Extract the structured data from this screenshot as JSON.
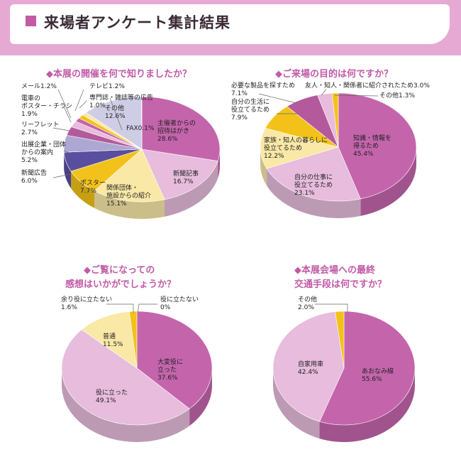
{
  "header": {
    "title": "来場者アンケート集計結果"
  },
  "colors": {
    "magenta": "#c465ac",
    "pink": "#e7bcdc",
    "gold": "#f3c21a",
    "lightyellow": "#f9e8a6",
    "navy": "#5a4e9e",
    "lavender": "#aca8d3",
    "palelavender": "#cfcde6",
    "plum": "#b45a9c",
    "banner": "#e6a9d3",
    "accent": "#c25aa6"
  },
  "chart_data": [
    {
      "type": "pie",
      "title": "◆本展の開催を何で知りましたか？",
      "slices": [
        {
          "label": "主催者からの招待はがき",
          "value": 28.6,
          "text": [
            "主催者からの",
            "招待はがき",
            "28.6%"
          ],
          "color": "magenta",
          "placement": "inside"
        },
        {
          "label": "新聞記事",
          "value": 16.7,
          "text": [
            "新聞記事",
            "16.7%"
          ],
          "color": "pink",
          "placement": "inside"
        },
        {
          "label": "関係団体・施設からの紹介",
          "value": 15.1,
          "text": [
            "関係団体・",
            "施設からの紹介",
            "15.1%"
          ],
          "color": "lightyellow",
          "placement": "inside"
        },
        {
          "label": "ポスター",
          "value": 7.7,
          "text": [
            "ポスター",
            "7.7%"
          ],
          "color": "gold",
          "placement": "inside"
        },
        {
          "label": "新聞広告",
          "value": 6.0,
          "text": [
            "新聞広告",
            "6.0%"
          ],
          "color": "navy",
          "placement": "outside"
        },
        {
          "label": "出展企業・団体からの案内",
          "value": 5.2,
          "text": [
            "出展企業・団体",
            "からの案内",
            "5.2%"
          ],
          "color": "lavender",
          "placement": "outside"
        },
        {
          "label": "リーフレット",
          "value": 2.7,
          "text": [
            "リーフレット",
            "2.7%"
          ],
          "color": "plum",
          "placement": "outside"
        },
        {
          "label": "電車のポスター・チラシ",
          "value": 1.9,
          "text": [
            "電車の",
            "ポスター・チラシ",
            "1.9%"
          ],
          "color": "pink",
          "placement": "outside"
        },
        {
          "label": "メール",
          "value": 1.2,
          "text": [
            "メール1.2%"
          ],
          "color": "magenta",
          "placement": "outside"
        },
        {
          "label": "テレビ",
          "value": 1.2,
          "text": [
            "テレビ1.2%"
          ],
          "color": "gold",
          "placement": "outside"
        },
        {
          "label": "専門誌・雑誌等の広告",
          "value": 1.0,
          "text": [
            "専門誌・雑誌等の広告",
            "1.0%"
          ],
          "color": "lightyellow",
          "placement": "outside"
        },
        {
          "label": "その他",
          "value": 12.6,
          "text": [
            "その他",
            "12.6%"
          ],
          "color": "palelavender",
          "placement": "inside"
        },
        {
          "label": "FAX",
          "value": 0.1,
          "text": [
            "FAX0.1%"
          ],
          "color": "navy",
          "placement": "outside"
        }
      ]
    },
    {
      "type": "pie",
      "title": "◆ご来場の目的は何ですか？",
      "slices": [
        {
          "label": "知識・情報を得るため",
          "value": 45.4,
          "text": [
            "知識・情報を",
            "得るため",
            "45.4%"
          ],
          "color": "magenta",
          "placement": "inside"
        },
        {
          "label": "自分の仕事に役立てるため",
          "value": 23.1,
          "text": [
            "自分の仕事に",
            "役立てるため",
            "23.1%"
          ],
          "color": "pink",
          "placement": "inside"
        },
        {
          "label": "家族・知人の暮らしに役立てるため",
          "value": 12.2,
          "text": [
            "家族・知人の暮らしに",
            "役立てるため",
            "12.2%"
          ],
          "color": "lightyellow",
          "placement": "inside"
        },
        {
          "label": "自分の生活に役立てるため",
          "value": 7.9,
          "text": [
            "自分の生活に",
            "役立てるため",
            "7.9%"
          ],
          "color": "gold",
          "placement": "outside"
        },
        {
          "label": "必要な製品を探すため",
          "value": 7.1,
          "text": [
            "必要な製品を探すため",
            "7.1%"
          ],
          "color": "plum",
          "placement": "outside"
        },
        {
          "label": "友人・知人・関係者に紹介されたため",
          "value": 3.0,
          "text": [
            "友人・知人・関係者に紹介されたため3.0%"
          ],
          "color": "pink",
          "placement": "outside"
        },
        {
          "label": "その他",
          "value": 1.3,
          "text": [
            "その他1.3%"
          ],
          "color": "gold",
          "placement": "outside"
        }
      ]
    },
    {
      "type": "pie",
      "title": [
        "◆ご覧になっての",
        "感想はいかがでしょうか？"
      ],
      "slices": [
        {
          "label": "大変役に立った",
          "value": 37.6,
          "text": [
            "大変役に",
            "立った",
            "37.6%"
          ],
          "color": "magenta",
          "placement": "inside"
        },
        {
          "label": "役に立った",
          "value": 49.1,
          "text": [
            "役に立った",
            "49.1%"
          ],
          "color": "pink",
          "placement": "inside"
        },
        {
          "label": "普通",
          "value": 11.5,
          "text": [
            "普通",
            "11.5%"
          ],
          "color": "lightyellow",
          "placement": "inside"
        },
        {
          "label": "余り役に立たない",
          "value": 1.6,
          "text": [
            "余り役に立たない",
            "1.6%"
          ],
          "color": "gold",
          "placement": "outside"
        },
        {
          "label": "役に立たない",
          "value": 0,
          "text": [
            "役に立たない",
            "0%"
          ],
          "color": "magenta",
          "placement": "outside"
        }
      ]
    },
    {
      "type": "pie",
      "title": [
        "◆本展会場への最終",
        "交通手段は何ですか？"
      ],
      "slices": [
        {
          "label": "あおなみ線",
          "value": 55.6,
          "text": [
            "あおなみ線",
            "55.6%"
          ],
          "color": "magenta",
          "placement": "inside"
        },
        {
          "label": "自家用車",
          "value": 42.4,
          "text": [
            "自家用車",
            "42.4%"
          ],
          "color": "pink",
          "placement": "inside"
        },
        {
          "label": "その他",
          "value": 2.0,
          "text": [
            "その他",
            "2.0%"
          ],
          "color": "gold",
          "placement": "outside"
        }
      ]
    }
  ]
}
